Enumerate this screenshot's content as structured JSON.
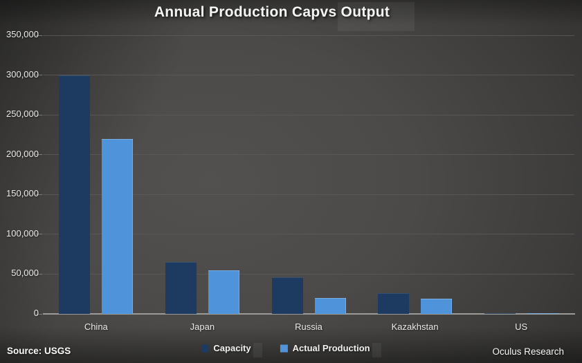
{
  "chart_data": {
    "type": "bar",
    "title": "Annual Production Capvs Output",
    "categories": [
      "China",
      "Japan",
      "Russia",
      "Kazakhstan",
      "US"
    ],
    "series": [
      {
        "name": "Capacity",
        "color": "#1d3b60",
        "values": [
          300000,
          65000,
          46000,
          26000,
          1000
        ]
      },
      {
        "name": "Actual Production",
        "color": "#4f94da",
        "values": [
          220000,
          55000,
          20000,
          19000,
          900
        ]
      }
    ],
    "xlabel": "",
    "ylabel": "",
    "ylim": [
      0,
      350000
    ],
    "yticks": [
      {
        "value": 0,
        "label": "0"
      },
      {
        "value": 50000,
        "label": "50,000"
      },
      {
        "value": 100000,
        "label": "100,000"
      },
      {
        "value": 150000,
        "label": "150,000"
      },
      {
        "value": 200000,
        "label": "200,000"
      },
      {
        "value": 250000,
        "label": "250,000"
      },
      {
        "value": 300000,
        "label": "300,000"
      },
      {
        "value": 350000,
        "label": "350,000"
      }
    ],
    "grid": true,
    "legend_position": "bottom"
  },
  "colors": {
    "capacity_bar": "#1d3b60",
    "actual_production_bar": "#4f94da",
    "gridline": "#5c5b58",
    "axis_line": "#9b9b98",
    "text": "#eaeae7",
    "background_center": "#53514f",
    "background_edge": "#2a2928"
  },
  "footer": {
    "source": "Source: USGS",
    "credit": "Oculus Research"
  }
}
